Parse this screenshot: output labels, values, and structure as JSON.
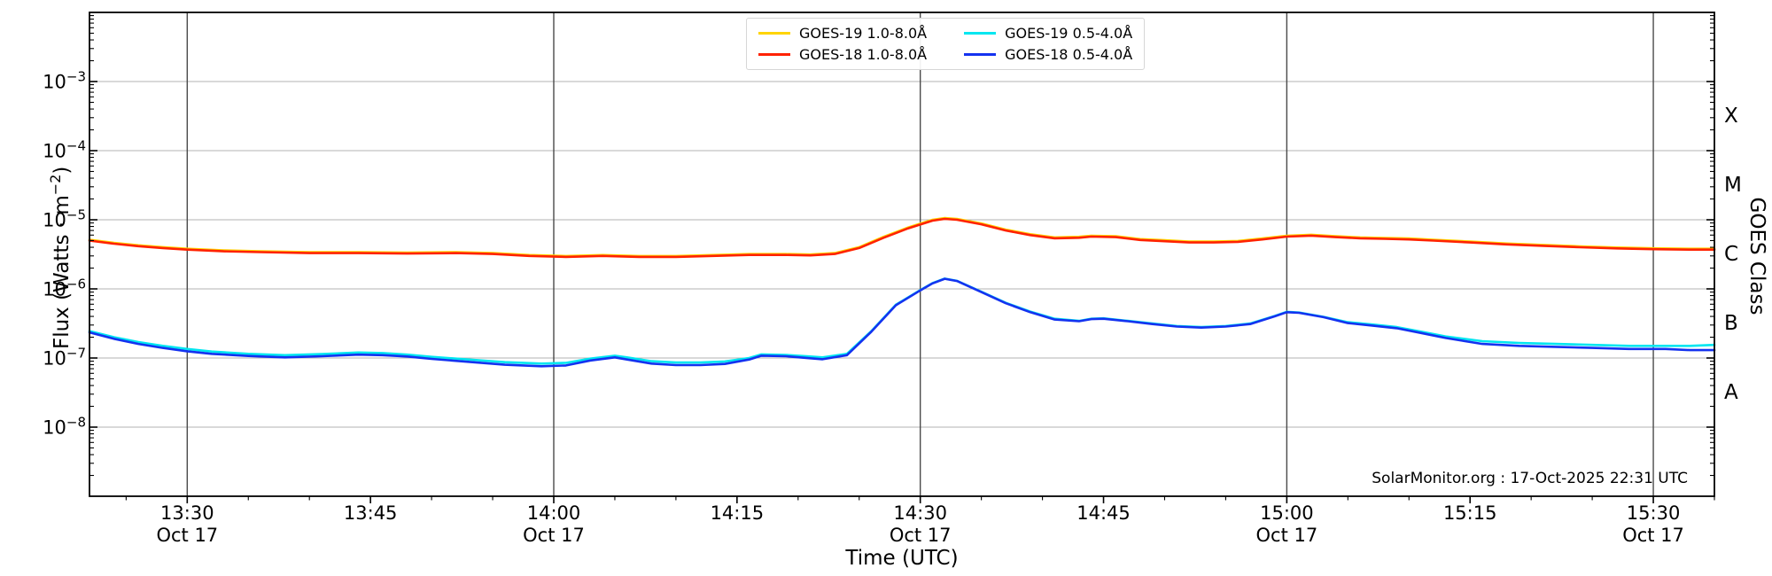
{
  "figure": {
    "attribution": "SolarMonitor.org : 17-Oct-2025 22:31 UTC"
  },
  "chart_data": {
    "type": "line",
    "title": "",
    "xlabel": "Time (UTC)",
    "ylabel_parts": {
      "prefix": "Flux (Watts · m",
      "sup": "−2",
      "suffix": ")"
    },
    "y_scale": "log",
    "ylim_exponents": [
      -9,
      -2
    ],
    "ytick_exponents": [
      -3,
      -4,
      -5,
      -6,
      -7,
      -8
    ],
    "grid": {
      "horizontal": "on",
      "vertical_30min": "on"
    },
    "x_start": "13:22",
    "x_end": "15:35",
    "xticks": [
      {
        "time": "13:30",
        "date": "Oct 17"
      },
      {
        "time": "13:45"
      },
      {
        "time": "14:00",
        "date": "Oct 17"
      },
      {
        "time": "14:15"
      },
      {
        "time": "14:30",
        "date": "Oct 17"
      },
      {
        "time": "14:45"
      },
      {
        "time": "15:00",
        "date": "Oct 17"
      },
      {
        "time": "15:15"
      },
      {
        "time": "15:30",
        "date": "Oct 17"
      }
    ],
    "right_axis": {
      "label": "GOES Class",
      "classes": [
        {
          "letter": "X",
          "log_center": -3.5
        },
        {
          "letter": "M",
          "log_center": -4.5
        },
        {
          "letter": "C",
          "log_center": -5.5
        },
        {
          "letter": "B",
          "log_center": -6.5
        },
        {
          "letter": "A",
          "log_center": -7.5
        }
      ]
    },
    "legend_position": "upper center",
    "series": [
      {
        "id": "goes19-long",
        "name": "GOES-19 1.0-8.0Å",
        "color": "#ffd400",
        "points": [
          [
            "13:22",
            5.15e-06
          ],
          [
            "13:24",
            4.64e-06
          ],
          [
            "13:26",
            4.27e-06
          ],
          [
            "13:28",
            4.02e-06
          ],
          [
            "13:30",
            3.81e-06
          ],
          [
            "13:33",
            3.61e-06
          ],
          [
            "13:36",
            3.5e-06
          ],
          [
            "13:40",
            3.4e-06
          ],
          [
            "13:44",
            3.4e-06
          ],
          [
            "13:48",
            3.35e-06
          ],
          [
            "13:52",
            3.4e-06
          ],
          [
            "13:55",
            3.3e-06
          ],
          [
            "13:58",
            3.09e-06
          ],
          [
            "14:01",
            2.99e-06
          ],
          [
            "14:04",
            3.09e-06
          ],
          [
            "14:07",
            2.99e-06
          ],
          [
            "14:10",
            2.99e-06
          ],
          [
            "14:13",
            3.09e-06
          ],
          [
            "14:16",
            3.19e-06
          ],
          [
            "14:19",
            3.19e-06
          ],
          [
            "14:21",
            3.14e-06
          ],
          [
            "14:23",
            3.3e-06
          ],
          [
            "14:25",
            4.02e-06
          ],
          [
            "14:27",
            5.67e-06
          ],
          [
            "14:29",
            7.73e-06
          ],
          [
            "14:31",
            9.99e-06
          ],
          [
            "14:32",
            1.06e-05
          ],
          [
            "14:33",
            1.03e-05
          ],
          [
            "14:35",
            8.86e-06
          ],
          [
            "14:37",
            7.21e-06
          ],
          [
            "14:39",
            6.18e-06
          ],
          [
            "14:41",
            5.56e-06
          ],
          [
            "14:43",
            5.67e-06
          ],
          [
            "14:44",
            5.87e-06
          ],
          [
            "14:46",
            5.77e-06
          ],
          [
            "14:48",
            5.25e-06
          ],
          [
            "14:50",
            5.05e-06
          ],
          [
            "14:52",
            4.84e-06
          ],
          [
            "14:54",
            4.84e-06
          ],
          [
            "14:56",
            4.94e-06
          ],
          [
            "14:58",
            5.36e-06
          ],
          [
            "15:00",
            5.87e-06
          ],
          [
            "15:02",
            6.08e-06
          ],
          [
            "15:04",
            5.77e-06
          ],
          [
            "15:06",
            5.56e-06
          ],
          [
            "15:08",
            5.46e-06
          ],
          [
            "15:10",
            5.36e-06
          ],
          [
            "15:12",
            5.15e-06
          ],
          [
            "15:15",
            4.84e-06
          ],
          [
            "15:18",
            4.53e-06
          ],
          [
            "15:21",
            4.33e-06
          ],
          [
            "15:24",
            4.12e-06
          ],
          [
            "15:27",
            3.97e-06
          ],
          [
            "15:30",
            3.86e-06
          ],
          [
            "15:33",
            3.81e-06
          ],
          [
            "15:35",
            3.81e-06
          ]
        ]
      },
      {
        "id": "goes18-long",
        "name": "GOES-18 1.0-8.0Å",
        "color": "#ff2200",
        "points": [
          [
            "13:22",
            5e-06
          ],
          [
            "13:24",
            4.5e-06
          ],
          [
            "13:26",
            4.15e-06
          ],
          [
            "13:28",
            3.9e-06
          ],
          [
            "13:30",
            3.7e-06
          ],
          [
            "13:33",
            3.5e-06
          ],
          [
            "13:36",
            3.4e-06
          ],
          [
            "13:40",
            3.3e-06
          ],
          [
            "13:44",
            3.3e-06
          ],
          [
            "13:48",
            3.25e-06
          ],
          [
            "13:52",
            3.3e-06
          ],
          [
            "13:55",
            3.2e-06
          ],
          [
            "13:58",
            3e-06
          ],
          [
            "14:01",
            2.9e-06
          ],
          [
            "14:04",
            3e-06
          ],
          [
            "14:07",
            2.9e-06
          ],
          [
            "14:10",
            2.9e-06
          ],
          [
            "14:13",
            3e-06
          ],
          [
            "14:16",
            3.1e-06
          ],
          [
            "14:19",
            3.1e-06
          ],
          [
            "14:21",
            3.05e-06
          ],
          [
            "14:23",
            3.2e-06
          ],
          [
            "14:25",
            3.9e-06
          ],
          [
            "14:27",
            5.5e-06
          ],
          [
            "14:29",
            7.5e-06
          ],
          [
            "14:31",
            9.7e-06
          ],
          [
            "14:32",
            1.03e-05
          ],
          [
            "14:33",
            1e-05
          ],
          [
            "14:35",
            8.6e-06
          ],
          [
            "14:37",
            7e-06
          ],
          [
            "14:39",
            6e-06
          ],
          [
            "14:41",
            5.4e-06
          ],
          [
            "14:43",
            5.5e-06
          ],
          [
            "14:44",
            5.7e-06
          ],
          [
            "14:46",
            5.6e-06
          ],
          [
            "14:48",
            5.1e-06
          ],
          [
            "14:50",
            4.9e-06
          ],
          [
            "14:52",
            4.7e-06
          ],
          [
            "14:54",
            4.7e-06
          ],
          [
            "14:56",
            4.8e-06
          ],
          [
            "14:58",
            5.2e-06
          ],
          [
            "15:00",
            5.7e-06
          ],
          [
            "15:02",
            5.9e-06
          ],
          [
            "15:04",
            5.6e-06
          ],
          [
            "15:06",
            5.4e-06
          ],
          [
            "15:08",
            5.3e-06
          ],
          [
            "15:10",
            5.2e-06
          ],
          [
            "15:12",
            5e-06
          ],
          [
            "15:15",
            4.7e-06
          ],
          [
            "15:18",
            4.4e-06
          ],
          [
            "15:21",
            4.2e-06
          ],
          [
            "15:24",
            4e-06
          ],
          [
            "15:27",
            3.85e-06
          ],
          [
            "15:30",
            3.75e-06
          ],
          [
            "15:33",
            3.7e-06
          ],
          [
            "15:35",
            3.7e-06
          ]
        ]
      },
      {
        "id": "goes19-short",
        "name": "GOES-19 0.5-4.0Å",
        "color": "#00e6f0",
        "points": [
          [
            "13:22",
            2.45e-07
          ],
          [
            "13:24",
            2e-07
          ],
          [
            "13:26",
            1.7e-07
          ],
          [
            "13:28",
            1.5e-07
          ],
          [
            "13:30",
            1.35e-07
          ],
          [
            "13:32",
            1.24e-07
          ],
          [
            "13:35",
            1.15e-07
          ],
          [
            "13:38",
            1.1e-07
          ],
          [
            "13:41",
            1.14e-07
          ],
          [
            "13:44",
            1.2e-07
          ],
          [
            "13:46",
            1.18e-07
          ],
          [
            "13:48",
            1.12e-07
          ],
          [
            "13:50",
            1.04e-07
          ],
          [
            "13:53",
            9.5e-08
          ],
          [
            "13:56",
            8.7e-08
          ],
          [
            "13:59",
            8.3e-08
          ],
          [
            "14:01",
            8.5e-08
          ],
          [
            "14:03",
            9.8e-08
          ],
          [
            "14:05",
            1.08e-07
          ],
          [
            "14:06",
            1.02e-07
          ],
          [
            "14:08",
            9e-08
          ],
          [
            "14:10",
            8.6e-08
          ],
          [
            "14:12",
            8.6e-08
          ],
          [
            "14:14",
            8.9e-08
          ],
          [
            "14:16",
            1e-07
          ],
          [
            "14:17",
            1.13e-07
          ],
          [
            "14:19",
            1.11e-07
          ],
          [
            "14:21",
            1.05e-07
          ],
          [
            "14:22",
            1.02e-07
          ],
          [
            "14:24",
            1.15e-07
          ],
          [
            "14:26",
            2.45e-07
          ],
          [
            "14:28",
            5.9e-07
          ],
          [
            "14:30",
            9.6e-07
          ],
          [
            "14:31",
            1.21e-06
          ],
          [
            "14:32",
            1.41e-06
          ],
          [
            "14:33",
            1.31e-06
          ],
          [
            "14:35",
            9.1e-07
          ],
          [
            "14:37",
            6.3e-07
          ],
          [
            "14:39",
            4.7e-07
          ],
          [
            "14:41",
            3.7e-07
          ],
          [
            "14:43",
            3.45e-07
          ],
          [
            "14:44",
            3.7e-07
          ],
          [
            "14:45",
            3.75e-07
          ],
          [
            "14:47",
            3.45e-07
          ],
          [
            "14:49",
            3.15e-07
          ],
          [
            "14:51",
            2.9e-07
          ],
          [
            "14:53",
            2.8e-07
          ],
          [
            "14:55",
            2.9e-07
          ],
          [
            "14:57",
            3.15e-07
          ],
          [
            "14:59",
            4.05e-07
          ],
          [
            "15:00",
            4.65e-07
          ],
          [
            "15:01",
            4.55e-07
          ],
          [
            "15:03",
            3.95e-07
          ],
          [
            "15:05",
            3.3e-07
          ],
          [
            "15:07",
            3.05e-07
          ],
          [
            "15:09",
            2.8e-07
          ],
          [
            "15:11",
            2.4e-07
          ],
          [
            "15:13",
            2.05e-07
          ],
          [
            "15:16",
            1.75e-07
          ],
          [
            "15:19",
            1.65e-07
          ],
          [
            "15:22",
            1.6e-07
          ],
          [
            "15:25",
            1.55e-07
          ],
          [
            "15:28",
            1.5e-07
          ],
          [
            "15:31",
            1.5e-07
          ],
          [
            "15:33",
            1.5e-07
          ],
          [
            "15:35",
            1.55e-07
          ]
        ]
      },
      {
        "id": "goes18-short",
        "name": "GOES-18 0.5-4.0Å",
        "color": "#1432f0",
        "points": [
          [
            "13:22",
            2.35e-07
          ],
          [
            "13:24",
            1.9e-07
          ],
          [
            "13:26",
            1.6e-07
          ],
          [
            "13:28",
            1.4e-07
          ],
          [
            "13:30",
            1.25e-07
          ],
          [
            "13:32",
            1.15e-07
          ],
          [
            "13:35",
            1.07e-07
          ],
          [
            "13:38",
            1.02e-07
          ],
          [
            "13:41",
            1.06e-07
          ],
          [
            "13:44",
            1.12e-07
          ],
          [
            "13:46",
            1.1e-07
          ],
          [
            "13:48",
            1.05e-07
          ],
          [
            "13:50",
            9.7e-08
          ],
          [
            "13:53",
            8.8e-08
          ],
          [
            "13:56",
            8e-08
          ],
          [
            "13:59",
            7.6e-08
          ],
          [
            "14:01",
            7.8e-08
          ],
          [
            "14:03",
            9.2e-08
          ],
          [
            "14:05",
            1.02e-07
          ],
          [
            "14:06",
            9.5e-08
          ],
          [
            "14:08",
            8.3e-08
          ],
          [
            "14:10",
            7.9e-08
          ],
          [
            "14:12",
            7.9e-08
          ],
          [
            "14:14",
            8.2e-08
          ],
          [
            "14:16",
            9.5e-08
          ],
          [
            "14:17",
            1.08e-07
          ],
          [
            "14:19",
            1.06e-07
          ],
          [
            "14:21",
            9.9e-08
          ],
          [
            "14:22",
            9.6e-08
          ],
          [
            "14:24",
            1.1e-07
          ],
          [
            "14:26",
            2.4e-07
          ],
          [
            "14:28",
            5.8e-07
          ],
          [
            "14:30",
            9.5e-07
          ],
          [
            "14:31",
            1.2e-06
          ],
          [
            "14:32",
            1.4e-06
          ],
          [
            "14:33",
            1.3e-06
          ],
          [
            "14:35",
            9e-07
          ],
          [
            "14:37",
            6.2e-07
          ],
          [
            "14:39",
            4.6e-07
          ],
          [
            "14:41",
            3.6e-07
          ],
          [
            "14:43",
            3.4e-07
          ],
          [
            "14:44",
            3.65e-07
          ],
          [
            "14:45",
            3.7e-07
          ],
          [
            "14:47",
            3.4e-07
          ],
          [
            "14:49",
            3.1e-07
          ],
          [
            "14:51",
            2.85e-07
          ],
          [
            "14:53",
            2.75e-07
          ],
          [
            "14:55",
            2.85e-07
          ],
          [
            "14:57",
            3.1e-07
          ],
          [
            "14:59",
            4e-07
          ],
          [
            "15:00",
            4.6e-07
          ],
          [
            "15:01",
            4.5e-07
          ],
          [
            "15:03",
            3.9e-07
          ],
          [
            "15:05",
            3.2e-07
          ],
          [
            "15:07",
            2.95e-07
          ],
          [
            "15:09",
            2.7e-07
          ],
          [
            "15:11",
            2.3e-07
          ],
          [
            "15:13",
            1.95e-07
          ],
          [
            "15:16",
            1.6e-07
          ],
          [
            "15:19",
            1.5e-07
          ],
          [
            "15:22",
            1.45e-07
          ],
          [
            "15:25",
            1.4e-07
          ],
          [
            "15:28",
            1.35e-07
          ],
          [
            "15:31",
            1.35e-07
          ],
          [
            "15:33",
            1.3e-07
          ],
          [
            "15:35",
            1.3e-07
          ]
        ]
      }
    ],
    "colors": {
      "grid_horizontal": "#b3b3b3",
      "grid_vertical": "#4a4a4a",
      "spine": "#000000"
    }
  }
}
